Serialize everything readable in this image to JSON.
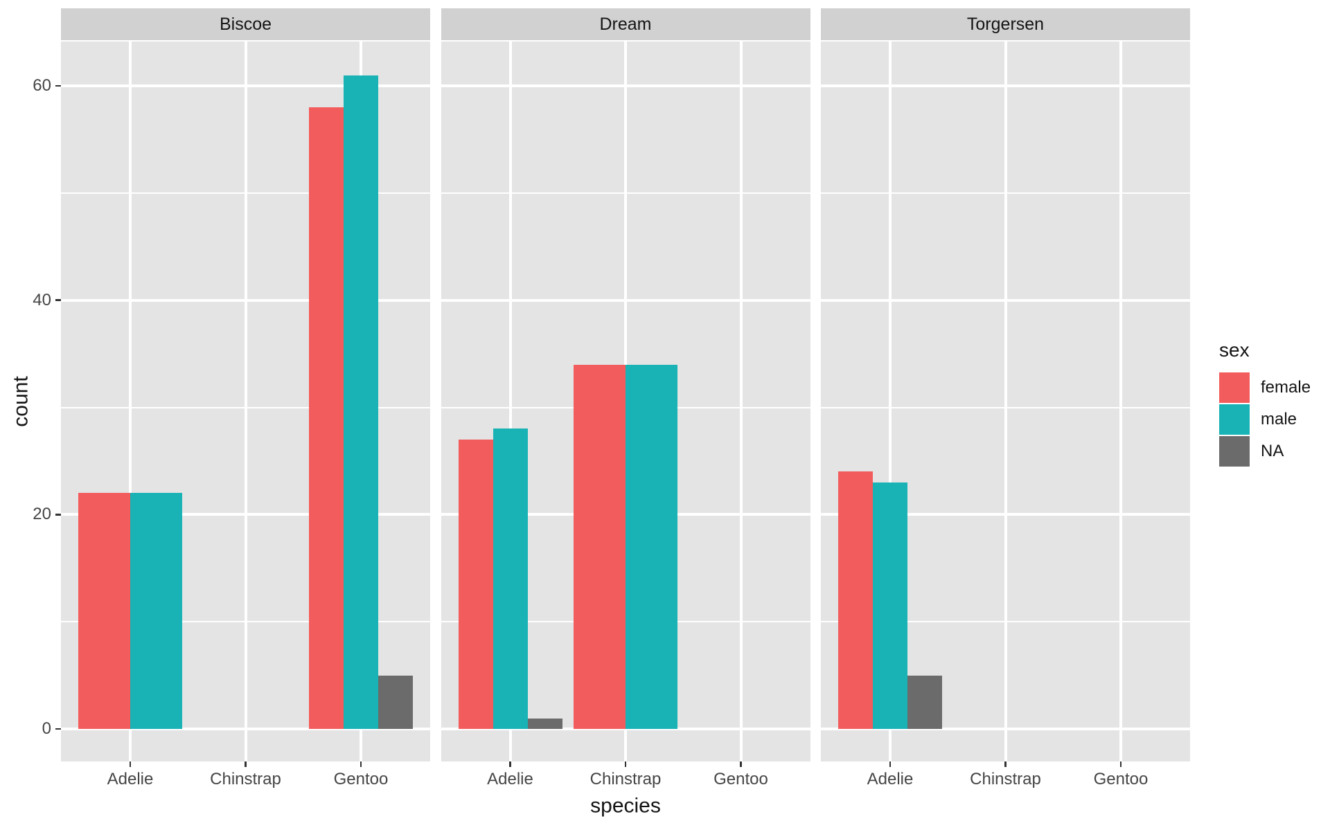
{
  "figure": {
    "background": "#FFFFFF",
    "panel_bg": "#E4E4E4",
    "strip_bg": "#D1D1D1",
    "grid_color": "#FFFFFF",
    "tick_mark_color": "#333333",
    "axis_text_color": "#454545",
    "title_text_color": "#141414"
  },
  "chart_data": {
    "type": "bar",
    "faceting": {
      "strips": [
        "Biscoe",
        "Dream",
        "Torgersen"
      ]
    },
    "categories": [
      "Adelie",
      "Chinstrap",
      "Gentoo"
    ],
    "series": [
      "female",
      "male",
      "NA"
    ],
    "colors": {
      "female": "#F35C5C",
      "male": "#19B2B5",
      "NA": "#6B6B6B"
    },
    "facets": [
      {
        "label": "Biscoe",
        "counts": {
          "Adelie": {
            "female": 22,
            "male": 22
          },
          "Chinstrap": {},
          "Gentoo": {
            "female": 58,
            "male": 61,
            "NA": 5
          }
        }
      },
      {
        "label": "Dream",
        "counts": {
          "Adelie": {
            "female": 27,
            "male": 28,
            "NA": 1
          },
          "Chinstrap": {
            "female": 34,
            "male": 34
          },
          "Gentoo": {}
        }
      },
      {
        "label": "Torgersen",
        "counts": {
          "Adelie": {
            "female": 24,
            "male": 23,
            "NA": 5
          },
          "Chinstrap": {},
          "Gentoo": {}
        }
      }
    ],
    "xlabel": "species",
    "ylabel": "count",
    "y_ticks": [
      0,
      20,
      40,
      60
    ],
    "y_minor_gridlines": [
      10,
      30,
      50
    ],
    "ylim": [
      -3,
      64
    ],
    "grid": true,
    "legend": {
      "title": "sex",
      "position": "right",
      "entries": [
        {
          "label": "female",
          "color": "#F35C5C"
        },
        {
          "label": "male",
          "color": "#19B2B5"
        },
        {
          "label": "NA",
          "color": "#6B6B6B"
        }
      ]
    }
  }
}
